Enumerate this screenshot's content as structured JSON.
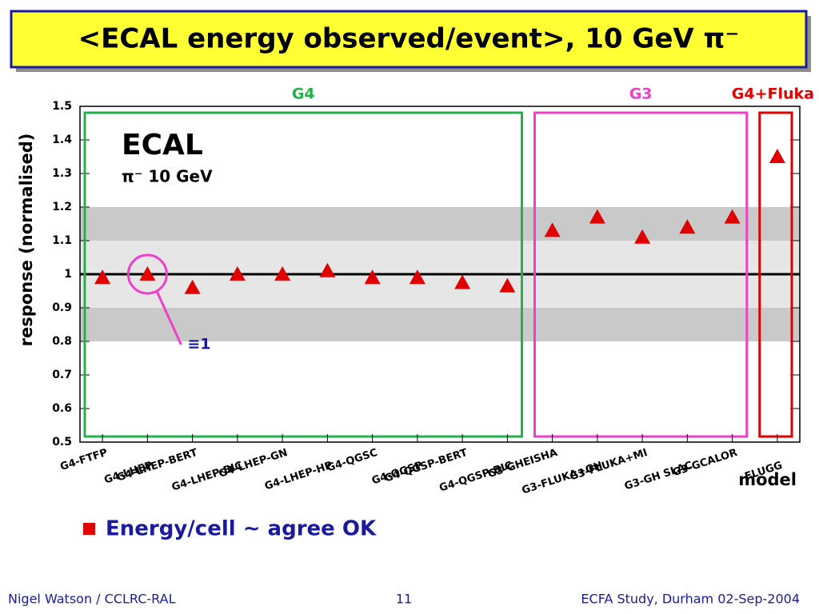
{
  "slide_title": "<ECAL energy observed/event>, 10 GeV π⁻",
  "chart_data": {
    "type": "scatter",
    "title": "ECAL",
    "subtitle": "π⁻ 10 GeV",
    "y_label": "response (normalised)",
    "x_label": "model",
    "annotation": "≡1",
    "marker_color": "#e00000",
    "series": [
      {
        "name": "G4",
        "color": "#22b24c",
        "categories": [
          "G4-FTFP",
          "G4-LHEP",
          "G4-LHEP-BERT",
          "G4-LHEP-BIC",
          "G4-LHEP-GN",
          "G4-LHEP-HP",
          "G4-QGSC",
          "G4-QGSP",
          "G4-QGSP-BERT",
          "G4-QGSP-BIC"
        ],
        "values": [
          0.99,
          1.0,
          0.96,
          1.0,
          1.0,
          1.01,
          0.99,
          0.99,
          0.975,
          0.965
        ]
      },
      {
        "name": "G3",
        "color": "#ee3fc8",
        "categories": [
          "G3-GHEISHA",
          "G3-FLUKA+GH",
          "G3-FLUKA+MI",
          "G3-GH SLAC",
          "G3-GCALOR"
        ],
        "values": [
          1.13,
          1.17,
          1.11,
          1.14,
          1.17
        ]
      },
      {
        "name": "G4+Fluka",
        "color": "#e00000",
        "categories": [
          "FLUGG"
        ],
        "values": [
          1.35
        ]
      }
    ],
    "bands": [
      {
        "from": 0.8,
        "to": 1.2,
        "color": "#c9c9c9"
      },
      {
        "from": 0.9,
        "to": 1.1,
        "color": "#e6e6e6"
      }
    ],
    "ref_line": 1,
    "ylim": [
      0.5,
      1.5
    ],
    "yticks": [
      0.5,
      0.6,
      0.7,
      0.8,
      0.9,
      1,
      1.1,
      1.2,
      1.3,
      1.4,
      1.5
    ]
  },
  "bullet": "Energy/cell ~ agree OK",
  "footer": {
    "left": "Nigel Watson / CCLRC-RAL",
    "center": "11",
    "right": "ECFA Study, Durham 02-Sep-2004"
  }
}
